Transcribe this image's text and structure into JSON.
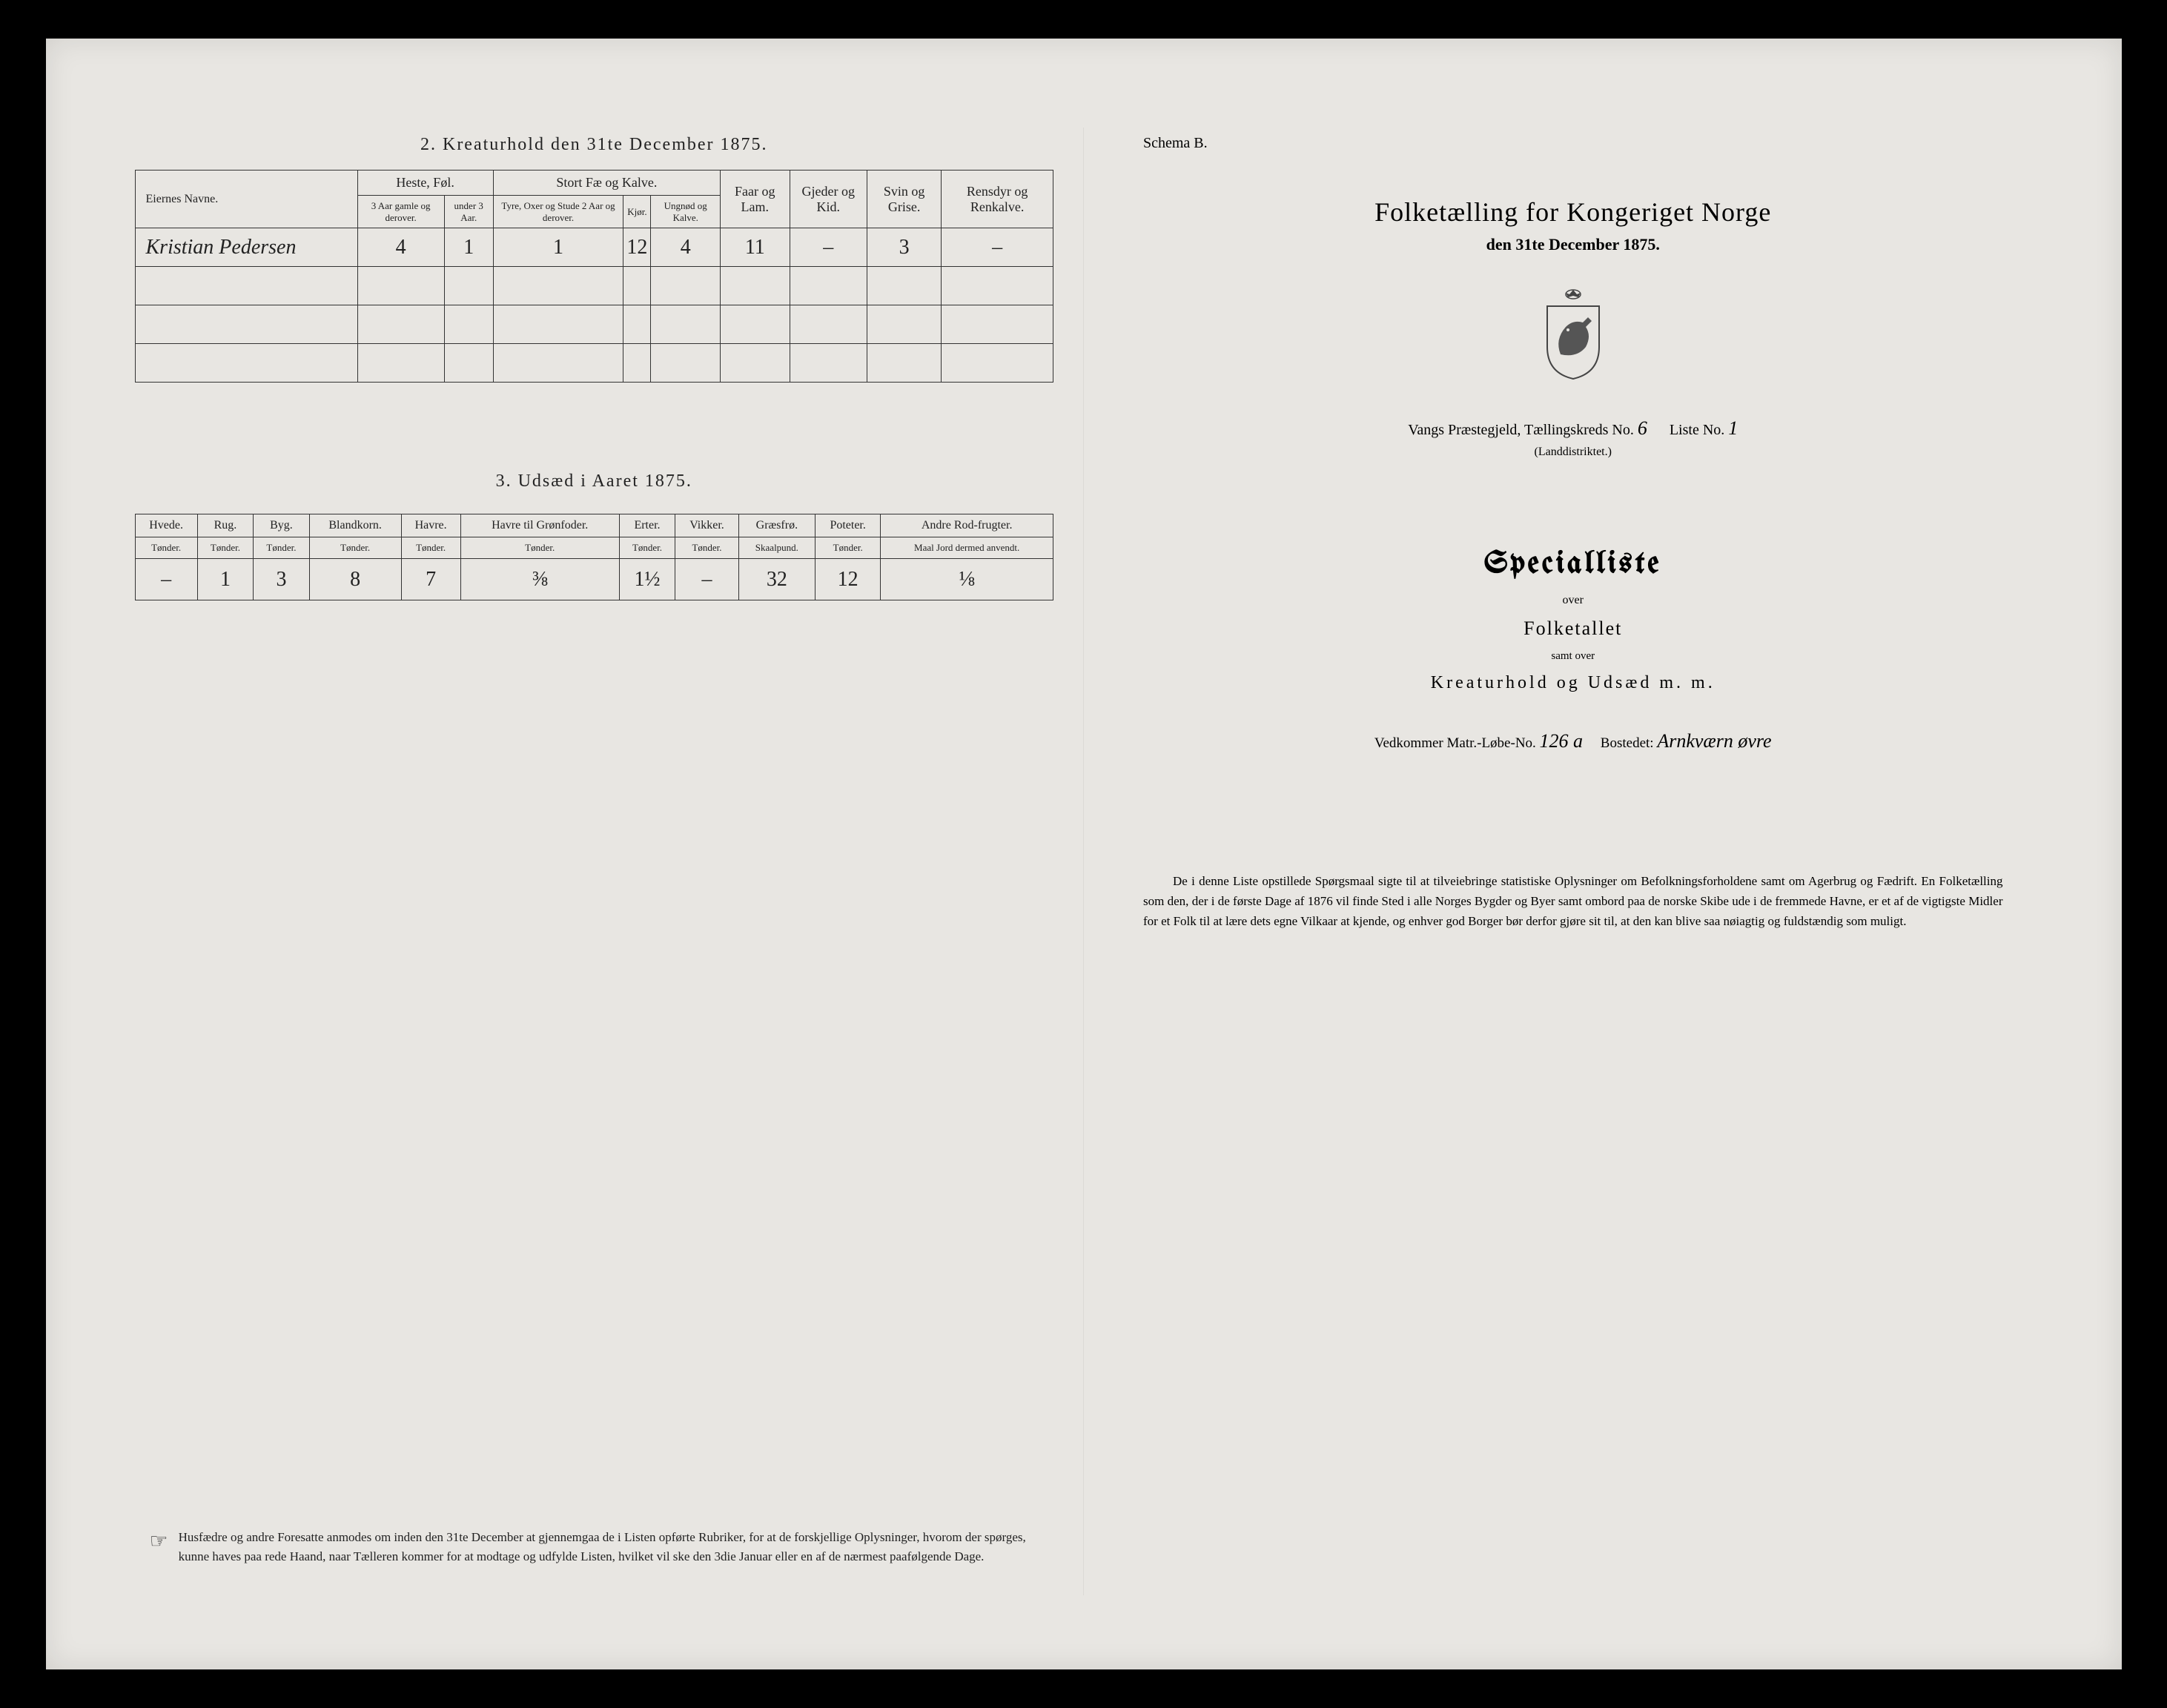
{
  "left": {
    "section2": {
      "title": "2.  Kreaturhold den 31te December 1875.",
      "owner_header": "Eiernes Navne.",
      "groups": {
        "heste": "Heste, Føl.",
        "stort": "Stort Fæ og Kalve.",
        "faar": "Faar og Lam.",
        "gjeder": "Gjeder og Kid.",
        "svin": "Svin og Grise.",
        "rensdyr": "Rensdyr og Renkalve."
      },
      "subheaders": {
        "heste_a": "3 Aar gamle og derover.",
        "heste_b": "under 3 Aar.",
        "stort_a": "Tyre, Oxer og Stude 2 Aar og derover.",
        "stort_b": "Kjør.",
        "stort_c": "Ungnød og Kalve."
      },
      "rows": [
        {
          "owner": "Kristian Pedersen",
          "cells": [
            "4",
            "1",
            "1",
            "12",
            "4",
            "11",
            "–",
            "3",
            "–"
          ]
        },
        {
          "owner": "",
          "cells": [
            "",
            "",
            "",
            "",
            "",
            "",
            "",
            "",
            ""
          ]
        },
        {
          "owner": "",
          "cells": [
            "",
            "",
            "",
            "",
            "",
            "",
            "",
            "",
            ""
          ]
        },
        {
          "owner": "",
          "cells": [
            "",
            "",
            "",
            "",
            "",
            "",
            "",
            "",
            ""
          ]
        }
      ]
    },
    "section3": {
      "title": "3.  Udsæd i Aaret 1875.",
      "columns": [
        {
          "h": "Hvede.",
          "s": "Tønder."
        },
        {
          "h": "Rug.",
          "s": "Tønder."
        },
        {
          "h": "Byg.",
          "s": "Tønder."
        },
        {
          "h": "Blandkorn.",
          "s": "Tønder."
        },
        {
          "h": "Havre.",
          "s": "Tønder."
        },
        {
          "h": "Havre til Grønfoder.",
          "s": "Tønder."
        },
        {
          "h": "Erter.",
          "s": "Tønder."
        },
        {
          "h": "Vikker.",
          "s": "Tønder."
        },
        {
          "h": "Græsfrø.",
          "s": "Skaalpund."
        },
        {
          "h": "Poteter.",
          "s": "Tønder."
        },
        {
          "h": "Andre Rod-frugter.",
          "s": "Maal Jord dermed anvendt."
        }
      ],
      "row": [
        "–",
        "1",
        "3",
        "8",
        "7",
        "⅜",
        "1½",
        "–",
        "32",
        "12",
        "⅛"
      ]
    },
    "footnote": "Husfædre og andre Foresatte anmodes om inden den 31te December at gjennemgaa de i Listen opførte Rubriker, for at de forskjellige Oplysninger, hvorom der spørges, kunne haves paa rede Haand, naar Tælleren kommer for at modtage og udfylde Listen, hvilket vil ske den 3die Januar eller en af de nærmest paafølgende Dage."
  },
  "right": {
    "schema": "Schema B.",
    "title": "Folketælling for Kongeriget Norge",
    "date": "den 31te December 1875.",
    "district_prefix": "Vangs Præstegjeld, Tællingskreds No.",
    "district_no": "6",
    "liste_label": "Liste No.",
    "liste_no": "1",
    "landdistrikt": "(Landdistriktet.)",
    "specialliste": "Specialliste",
    "over": "over",
    "folketallet": "Folketallet",
    "samt": "samt over",
    "kreaturhold": "Kreaturhold og Udsæd m. m.",
    "vedkommer_label": "Vedkommer Matr.-Løbe-No.",
    "matr_no": "126 a",
    "bostedet_label": "Bostedet:",
    "bostedet": "Arnkværn øvre",
    "footnote": "De i denne Liste opstillede Spørgsmaal sigte til at tilveiebringe statistiske Oplysninger om Befolkningsforholdene samt om Agerbrug og Fædrift.  En Folketælling som den, der i de første Dage af 1876 vil finde Sted i alle Norges Bygder og Byer samt ombord paa de norske Skibe ude i de fremmede Havne, er et af de vigtigste Midler for et Folk til at lære dets egne Vilkaar at kjende, og enhver god Borger bør derfor gjøre sit til, at den kan blive saa nøiagtig og fuldstændig som muligt."
  },
  "colors": {
    "paper": "#e8e6e2",
    "ink": "#222222",
    "border": "#333333"
  }
}
